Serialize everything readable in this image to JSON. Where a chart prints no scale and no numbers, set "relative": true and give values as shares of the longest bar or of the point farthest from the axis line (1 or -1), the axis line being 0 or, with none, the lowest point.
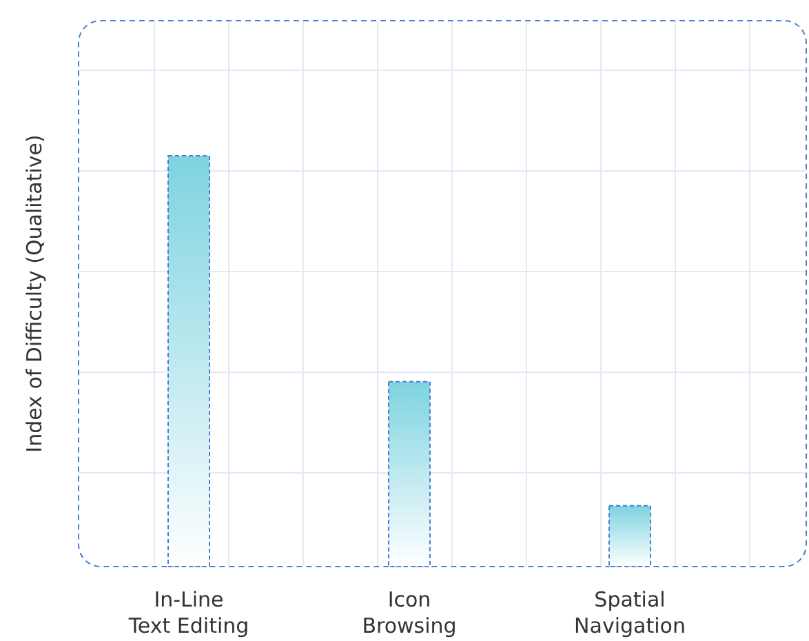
{
  "chart_data": {
    "type": "bar",
    "ylabel": "Index of Difficulty (Qualitative)",
    "categories": [
      "In-Line Text Editing",
      "Icon Browsing",
      "Spatial Navigation"
    ],
    "values": [
      1,
      0.45,
      0.148
    ],
    "color": "#7dd3e0",
    "relative": true,
    "grid": true
  }
}
